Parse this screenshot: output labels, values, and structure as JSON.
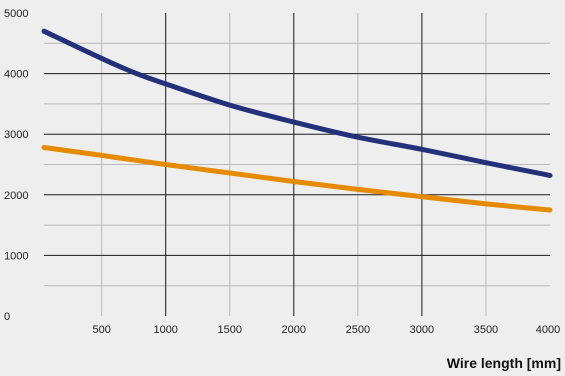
{
  "chart_data": {
    "type": "line",
    "title": "",
    "xlabel": "Wire length [mm]",
    "ylabel": "",
    "xlim": [
      50,
      4000
    ],
    "ylim": [
      0,
      5000
    ],
    "xticks": [
      500,
      1000,
      1500,
      2000,
      2500,
      3000,
      3500,
      4000
    ],
    "yticks": [
      0,
      1000,
      2000,
      3000,
      4000,
      5000
    ],
    "grid": true,
    "legend": "none",
    "series": [
      {
        "color": "#23307a",
        "x": [
          50,
          500,
          750,
          1000,
          1500,
          2000,
          2500,
          3000,
          3500,
          4000
        ],
        "y": [
          4700,
          4250,
          4020,
          3830,
          3480,
          3200,
          2950,
          2750,
          2530,
          2320
        ]
      },
      {
        "color": "#e68a00",
        "x": [
          50,
          500,
          1000,
          1500,
          2000,
          2500,
          3000,
          3500,
          4000
        ],
        "y": [
          2780,
          2650,
          2500,
          2360,
          2220,
          2090,
          1970,
          1850,
          1750
        ]
      }
    ]
  }
}
